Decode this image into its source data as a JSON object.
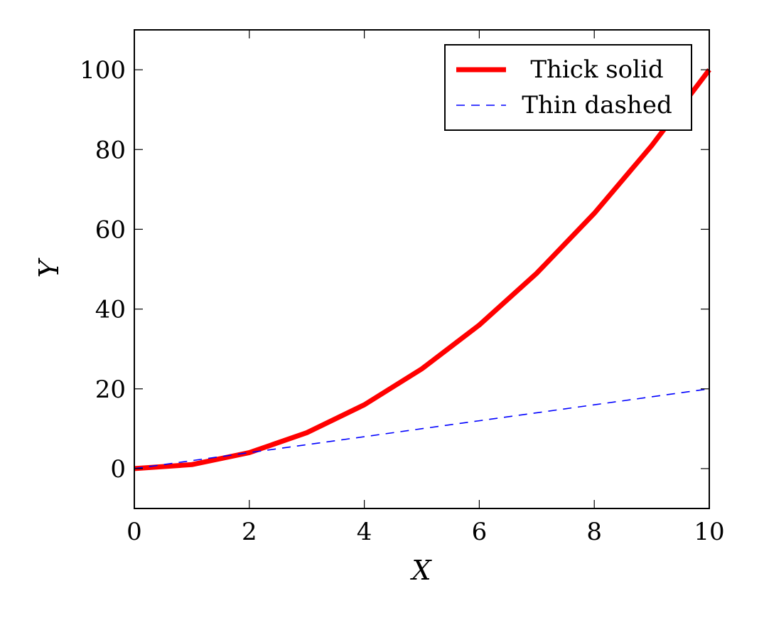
{
  "chart_data": {
    "type": "line",
    "title": "",
    "xlabel": "X",
    "ylabel": "Y",
    "xlim": [
      0,
      10
    ],
    "ylim": [
      -10,
      110
    ],
    "xticks": [
      0,
      2,
      4,
      6,
      8,
      10
    ],
    "yticks": [
      0,
      20,
      40,
      60,
      80,
      100
    ],
    "grid": false,
    "legend_position": "top-right",
    "series": [
      {
        "name": "Thick solid",
        "style": "solid",
        "weight": "thick",
        "color": "#ff0000",
        "x": [
          0,
          1,
          2,
          3,
          4,
          5,
          6,
          7,
          8,
          9,
          10
        ],
        "y": [
          0,
          1,
          4,
          9,
          16,
          25,
          36,
          49,
          64,
          81,
          100
        ]
      },
      {
        "name": "Thin dashed",
        "style": "dashed",
        "weight": "thin",
        "color": "#0000ff",
        "x": [
          0,
          1,
          2,
          3,
          4,
          5,
          6,
          7,
          8,
          9,
          10
        ],
        "y": [
          0,
          2,
          4,
          6,
          8,
          10,
          12,
          14,
          16,
          18,
          20
        ]
      }
    ]
  }
}
